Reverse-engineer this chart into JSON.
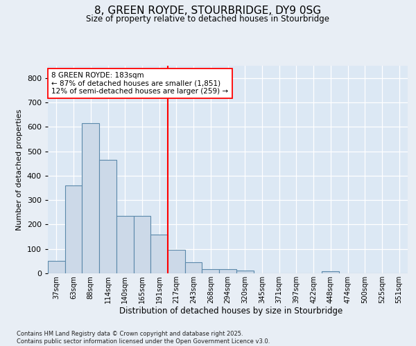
{
  "title_line1": "8, GREEN ROYDE, STOURBRIDGE, DY9 0SG",
  "title_line2": "Size of property relative to detached houses in Stourbridge",
  "xlabel": "Distribution of detached houses by size in Stourbridge",
  "ylabel": "Number of detached properties",
  "categories": [
    "37sqm",
    "63sqm",
    "88sqm",
    "114sqm",
    "140sqm",
    "165sqm",
    "191sqm",
    "217sqm",
    "243sqm",
    "268sqm",
    "294sqm",
    "320sqm",
    "345sqm",
    "371sqm",
    "397sqm",
    "422sqm",
    "448sqm",
    "474sqm",
    "500sqm",
    "525sqm",
    "551sqm"
  ],
  "values": [
    52,
    360,
    615,
    465,
    235,
    235,
    160,
    95,
    45,
    18,
    18,
    12,
    0,
    0,
    0,
    0,
    8,
    0,
    0,
    0,
    0
  ],
  "bar_color": "#ccd9e8",
  "bar_edge_color": "#5a88aa",
  "vline_index": 6,
  "annotation_line1": "8 GREEN ROYDE: 183sqm",
  "annotation_line2": "← 87% of detached houses are smaller (1,851)",
  "annotation_line3": "12% of semi-detached houses are larger (259) →",
  "ylim_max": 850,
  "yticks": [
    0,
    100,
    200,
    300,
    400,
    500,
    600,
    700,
    800
  ],
  "footer_line1": "Contains HM Land Registry data © Crown copyright and database right 2025.",
  "footer_line2": "Contains public sector information licensed under the Open Government Licence v3.0.",
  "bg_color": "#dce8f4",
  "fig_bg_color": "#e8eef5"
}
